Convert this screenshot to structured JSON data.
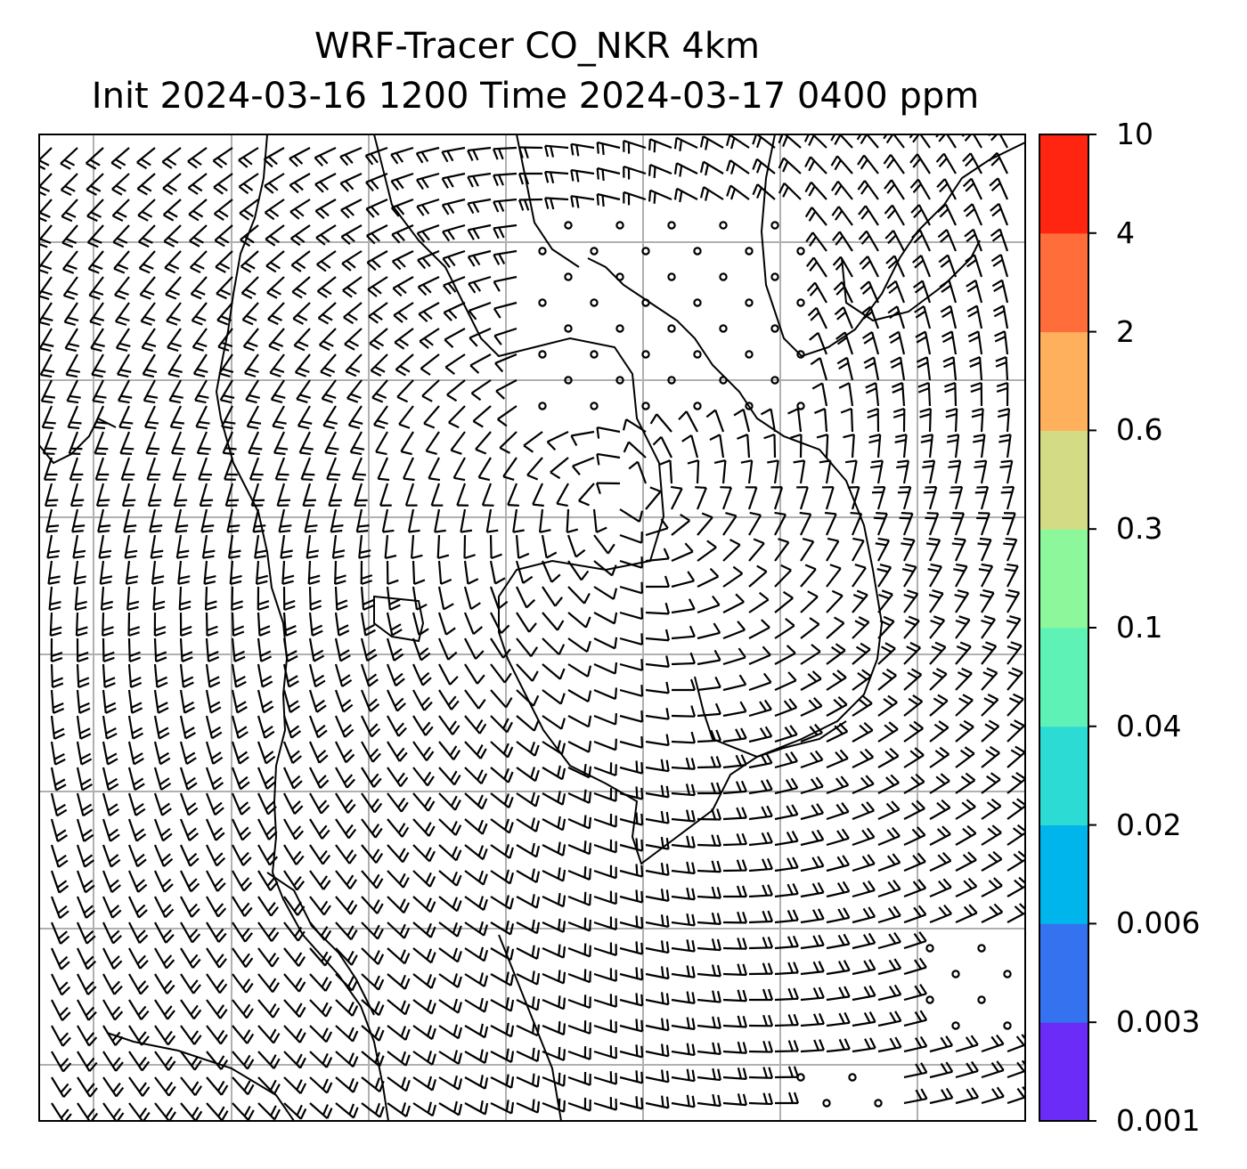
{
  "title": {
    "line1": "WRF-Tracer CO_NKR 4km",
    "line2": "Init 2024-03-16 1200 Time 2024-03-17 0400 ppm"
  },
  "colorbar": {
    "levels": [
      "0.001",
      "0.003",
      "0.006",
      "0.02",
      "0.04",
      "0.1",
      "0.3",
      "0.6",
      "2",
      "4",
      "10"
    ],
    "colors": [
      "#6a2cf6",
      "#3572f0",
      "#00b4ec",
      "#2cdbd3",
      "#5ef2b6",
      "#8cf79b",
      "#d3dc84",
      "#ffb05c",
      "#ff6e3a",
      "#ff2510"
    ]
  },
  "map": {
    "gridlines": true,
    "gridline_color": "#b0b0b0",
    "coastline_color": "#000000",
    "wind_barbs": true
  }
}
